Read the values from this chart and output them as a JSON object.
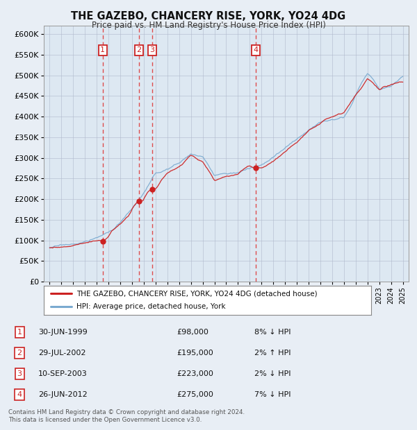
{
  "title": "THE GAZEBO, CHANCERY RISE, YORK, YO24 4DG",
  "subtitle": "Price paid vs. HM Land Registry's House Price Index (HPI)",
  "legend_line1": "THE GAZEBO, CHANCERY RISE, YORK, YO24 4DG (detached house)",
  "legend_line2": "HPI: Average price, detached house, York",
  "footer": "Contains HM Land Registry data © Crown copyright and database right 2024.\nThis data is licensed under the Open Government Licence v3.0.",
  "transactions": [
    {
      "num": 1,
      "date": "30-JUN-1999",
      "year": 1999.5,
      "price": 98000,
      "pct": "8%",
      "dir": "↓"
    },
    {
      "num": 2,
      "date": "29-JUL-2002",
      "year": 2002.58,
      "price": 195000,
      "pct": "2%",
      "dir": "↑"
    },
    {
      "num": 3,
      "date": "10-SEP-2003",
      "year": 2003.69,
      "price": 223000,
      "pct": "2%",
      "dir": "↓"
    },
    {
      "num": 4,
      "date": "26-JUN-2012",
      "year": 2012.5,
      "price": 275000,
      "pct": "7%",
      "dir": "↓"
    }
  ],
  "ylim": [
    0,
    620000
  ],
  "yticks": [
    0,
    50000,
    100000,
    150000,
    200000,
    250000,
    300000,
    350000,
    400000,
    450000,
    500000,
    550000,
    600000
  ],
  "background_color": "#e8eef5",
  "plot_bg": "#dde8f2",
  "grid_color": "#b0b8cc",
  "hpi_color": "#7aaad0",
  "price_color": "#cc2222",
  "marker_color": "#cc2222",
  "vline_color": "#dd4444",
  "box_color": "#cc2222",
  "hpi_key_years": [
    1995,
    1996,
    1997,
    1998,
    1999,
    2000,
    2001,
    2002,
    2003,
    2004,
    2005,
    2006,
    2007,
    2008,
    2009,
    2010,
    2011,
    2012,
    2013,
    2014,
    2015,
    2016,
    2017,
    2018,
    2019,
    2020,
    2020.5,
    2021,
    2021.5,
    2022,
    2022.5,
    2023,
    2023.5,
    2024,
    2025
  ],
  "hpi_key_values": [
    83000,
    86000,
    90000,
    95000,
    104000,
    118000,
    142000,
    172000,
    208000,
    252000,
    263000,
    277000,
    302000,
    293000,
    246000,
    252000,
    256000,
    265000,
    272000,
    290000,
    312000,
    332000,
    358000,
    375000,
    388000,
    398000,
    420000,
    450000,
    480000,
    505000,
    488000,
    465000,
    468000,
    472000,
    500000
  ],
  "price_key_years": [
    1995,
    1996,
    1997,
    1998,
    1999,
    2000,
    2001,
    2002,
    2003,
    2004,
    2005,
    2006,
    2007,
    2008,
    2009,
    2010,
    2011,
    2012,
    2013,
    2014,
    2015,
    2016,
    2017,
    2018,
    2019,
    2020,
    2021,
    2022,
    2022.5,
    2023,
    2024,
    2025
  ],
  "price_key_values": [
    82000,
    85000,
    88000,
    92000,
    98000,
    113000,
    138000,
    168000,
    195000,
    223000,
    258000,
    270000,
    300000,
    285000,
    240000,
    248000,
    250000,
    275000,
    265000,
    280000,
    305000,
    325000,
    352000,
    370000,
    383000,
    393000,
    438000,
    478000,
    465000,
    450000,
    460000,
    468000
  ]
}
